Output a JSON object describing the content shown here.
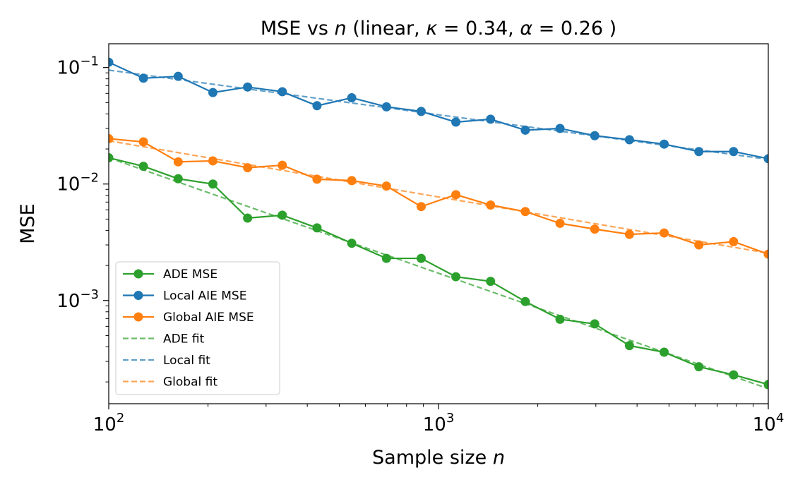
{
  "chart_data": {
    "type": "line",
    "title": "MSE vs n (linear, κ = 0.34, α = 0.26 )",
    "title_parts": {
      "prefix": "MSE vs ",
      "n": "n",
      "middle": " (linear, ",
      "kappa": "κ",
      "kappa_val": " = 0.34, ",
      "alpha": "α",
      "alpha_val": " = 0.26 )"
    },
    "xlabel": "Sample size n",
    "xlabel_parts": {
      "text": "Sample size ",
      "var": "n"
    },
    "ylabel": "MSE",
    "xscale": "log",
    "yscale": "log",
    "xlim": [
      100,
      10000
    ],
    "ylim": [
      0.00013,
      0.16
    ],
    "x_ticks": [
      {
        "value": 100,
        "base": "10",
        "exp": "2"
      },
      {
        "value": 1000,
        "base": "10",
        "exp": "3"
      },
      {
        "value": 10000,
        "base": "10",
        "exp": "4"
      }
    ],
    "y_ticks": [
      {
        "value": 0.1,
        "base": "10",
        "exp": "−1"
      },
      {
        "value": 0.01,
        "base": "10",
        "exp": "−2"
      },
      {
        "value": 0.001,
        "base": "10",
        "exp": "−3"
      }
    ],
    "legend_position": "lower-left",
    "x": [
      100,
      127.4,
      162.4,
      206.9,
      263.7,
      336,
      428.1,
      545.6,
      695.2,
      885.9,
      1128.8,
      1438.4,
      1832.98,
      2335.7,
      2976.4,
      3792.7,
      4832.9,
      6158.5,
      7847.6,
      10000
    ],
    "series": [
      {
        "name": "ADE MSE",
        "style": "line-marker",
        "color": "#2ca02c",
        "values": [
          0.0168,
          0.0142,
          0.0111,
          0.01,
          0.0051,
          0.0054,
          0.0042,
          0.0031,
          0.0023,
          0.0023,
          0.0016,
          0.00146,
          0.00098,
          0.00069,
          0.00063,
          0.00041,
          0.00036,
          0.00027,
          0.00023,
          0.00019
        ]
      },
      {
        "name": "Local AIE MSE",
        "style": "line-marker",
        "color": "#1f77b4",
        "values": [
          0.111,
          0.081,
          0.084,
          0.061,
          0.068,
          0.062,
          0.047,
          0.055,
          0.046,
          0.042,
          0.034,
          0.036,
          0.029,
          0.03,
          0.026,
          0.024,
          0.022,
          0.019,
          0.019,
          0.0165
        ]
      },
      {
        "name": "Global AIE MSE",
        "style": "line-marker",
        "color": "#ff7f0e",
        "values": [
          0.0245,
          0.023,
          0.0155,
          0.0158,
          0.0138,
          0.0145,
          0.011,
          0.0107,
          0.0096,
          0.0064,
          0.0081,
          0.0066,
          0.0058,
          0.0046,
          0.0041,
          0.0037,
          0.0038,
          0.003,
          0.0032,
          0.0025
        ]
      },
      {
        "name": "ADE fit",
        "style": "dashed",
        "color": "#2ca02c",
        "power_law": {
          "x0": 100,
          "y0": 0.0168,
          "x1": 10000,
          "y1": 0.000175
        }
      },
      {
        "name": "Local fit",
        "style": "dashed",
        "color": "#1f77b4",
        "power_law": {
          "x0": 100,
          "y0": 0.095,
          "x1": 10000,
          "y1": 0.0163
        }
      },
      {
        "name": "Global fit",
        "style": "dashed",
        "color": "#ff7f0e",
        "power_law": {
          "x0": 100,
          "y0": 0.0235,
          "x1": 10000,
          "y1": 0.00255
        }
      }
    ]
  }
}
